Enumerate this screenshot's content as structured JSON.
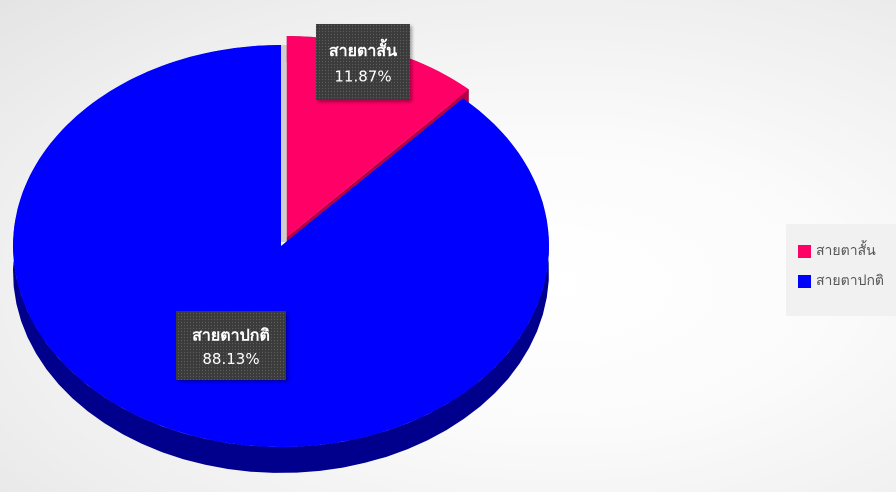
{
  "chart_data": {
    "type": "pie",
    "title": "",
    "categories": [
      "สายตาสั้น",
      "สายตาปกติ"
    ],
    "values": [
      11.87,
      88.13
    ],
    "value_labels": [
      "11.87%",
      "88.13%"
    ],
    "colors": [
      "#ff0066",
      "#0000ff"
    ],
    "exploded": [
      true,
      false
    ],
    "three_d": true,
    "legend": "right"
  }
}
